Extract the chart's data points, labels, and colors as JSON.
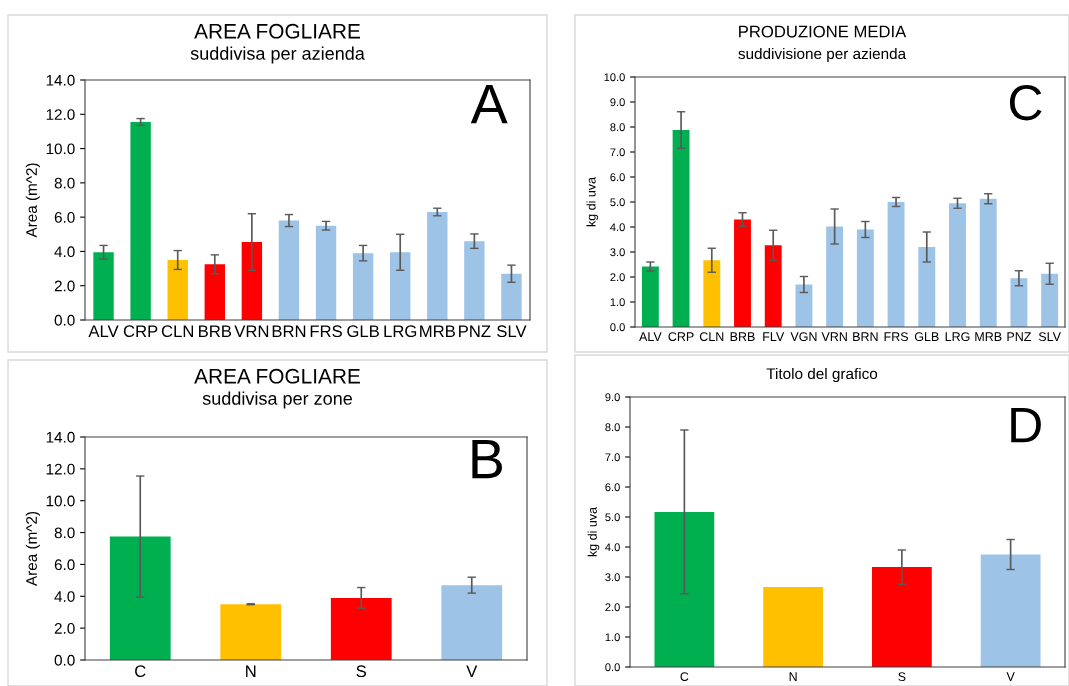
{
  "chart_data": [
    {
      "type": "bar",
      "title": "AREA FOGLIARE",
      "subtitle": "suddivisa per azienda",
      "ylabel": "Area (m^2)",
      "annotations": [
        "A"
      ],
      "categories": [
        "ALV",
        "CRP",
        "CLN",
        "BRB",
        "VRN",
        "BRN",
        "FRS",
        "GLB",
        "LRG",
        "MRB",
        "PNZ",
        "SLV"
      ],
      "values": [
        3.95,
        11.55,
        3.5,
        3.25,
        4.55,
        5.8,
        5.5,
        3.9,
        3.95,
        6.3,
        4.6,
        2.7
      ],
      "errors": [
        0.4,
        0.2,
        0.55,
        0.55,
        1.65,
        0.35,
        0.25,
        0.45,
        1.05,
        0.22,
        0.42,
        0.5
      ],
      "colors": [
        "#00b050",
        "#00b050",
        "#ffc000",
        "#ff0000",
        "#ff0000",
        "#9dc3e6",
        "#9dc3e6",
        "#9dc3e6",
        "#9dc3e6",
        "#9dc3e6",
        "#9dc3e6",
        "#9dc3e6"
      ],
      "ylim": [
        0,
        14
      ],
      "yticks": [
        {
          "value": 0,
          "label": "0.0"
        },
        {
          "value": 2,
          "label": "2.0"
        },
        {
          "value": 4,
          "label": "4.0"
        },
        {
          "value": 6,
          "label": "6.0"
        },
        {
          "value": 8,
          "label": "8.0"
        },
        {
          "value": 10,
          "label": "10.0"
        },
        {
          "value": 12,
          "label": "12.0"
        },
        {
          "value": 14,
          "label": "14.0"
        }
      ],
      "grid": false,
      "legend": false
    },
    {
      "type": "bar",
      "title": "PRODUZIONE MEDIA",
      "subtitle": "suddivisione per azienda",
      "ylabel": "kg di uva",
      "annotations": [
        "C"
      ],
      "categories": [
        "ALV",
        "CRP",
        "CLN",
        "BRB",
        "FLV",
        "VGN",
        "VRN",
        "BRN",
        "FRS",
        "GLB",
        "LRG",
        "MRB",
        "PNZ",
        "SLV"
      ],
      "values": [
        2.42,
        7.88,
        2.67,
        4.3,
        3.27,
        1.7,
        4.02,
        3.9,
        5.0,
        3.2,
        4.95,
        5.13,
        1.95,
        2.13
      ],
      "errors": [
        0.18,
        0.73,
        0.48,
        0.27,
        0.6,
        0.32,
        0.7,
        0.32,
        0.18,
        0.6,
        0.2,
        0.2,
        0.3,
        0.42
      ],
      "colors": [
        "#00b050",
        "#00b050",
        "#ffc000",
        "#ff0000",
        "#ff0000",
        "#9dc3e6",
        "#9dc3e6",
        "#9dc3e6",
        "#9dc3e6",
        "#9dc3e6",
        "#9dc3e6",
        "#9dc3e6",
        "#9dc3e6",
        "#9dc3e6"
      ],
      "ylim": [
        0,
        10
      ],
      "yticks": [
        {
          "value": 0,
          "label": "0.0"
        },
        {
          "value": 1,
          "label": "1.0"
        },
        {
          "value": 2,
          "label": "2.0"
        },
        {
          "value": 3,
          "label": "3.0"
        },
        {
          "value": 4,
          "label": "4.0"
        },
        {
          "value": 5,
          "label": "5.0"
        },
        {
          "value": 6,
          "label": "6.0"
        },
        {
          "value": 7,
          "label": "7.0"
        },
        {
          "value": 8,
          "label": "8.0"
        },
        {
          "value": 9,
          "label": "9.0"
        },
        {
          "value": 10,
          "label": "10.0"
        }
      ],
      "grid": false,
      "legend": false
    },
    {
      "type": "bar",
      "title": "AREA FOGLIARE",
      "subtitle": "suddivisa per zone",
      "ylabel": "Area (m^2)",
      "annotations": [
        "B"
      ],
      "categories": [
        "C",
        "N",
        "S",
        "V"
      ],
      "values": [
        7.75,
        3.5,
        3.9,
        4.7
      ],
      "errors": [
        3.8,
        0.03,
        0.65,
        0.5
      ],
      "colors": [
        "#00b050",
        "#ffc000",
        "#ff0000",
        "#9dc3e6"
      ],
      "ylim": [
        0,
        14
      ],
      "yticks": [
        {
          "value": 0,
          "label": "0.0"
        },
        {
          "value": 2,
          "label": "2.0"
        },
        {
          "value": 4,
          "label": "4.0"
        },
        {
          "value": 6,
          "label": "6.0"
        },
        {
          "value": 8,
          "label": "8.0"
        },
        {
          "value": 10,
          "label": "10.0"
        },
        {
          "value": 12,
          "label": "12.0"
        },
        {
          "value": 14,
          "label": "14.0"
        }
      ],
      "grid": false,
      "legend": false
    },
    {
      "type": "bar",
      "title": "Titolo del grafico",
      "ylabel": "kg di uva",
      "annotations": [
        "D"
      ],
      "categories": [
        "C",
        "N",
        "S",
        "V"
      ],
      "values": [
        5.17,
        2.67,
        3.33,
        3.75
      ],
      "errors": [
        2.73,
        null,
        0.57,
        0.5
      ],
      "colors": [
        "#00b050",
        "#ffc000",
        "#ff0000",
        "#9dc3e6"
      ],
      "ylim": [
        0,
        9
      ],
      "yticks": [
        {
          "value": 0,
          "label": "0.0"
        },
        {
          "value": 1,
          "label": "1.0"
        },
        {
          "value": 2,
          "label": "2.0"
        },
        {
          "value": 3,
          "label": "3.0"
        },
        {
          "value": 4,
          "label": "4.0"
        },
        {
          "value": 5,
          "label": "5.0"
        },
        {
          "value": 6,
          "label": "6.0"
        },
        {
          "value": 7,
          "label": "7.0"
        },
        {
          "value": 8,
          "label": "8.0"
        },
        {
          "value": 9,
          "label": "9.0"
        }
      ],
      "grid": false,
      "legend": false
    }
  ]
}
